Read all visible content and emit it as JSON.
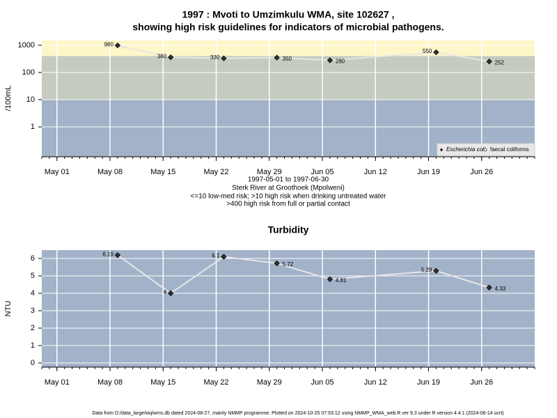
{
  "chart_data": [
    {
      "type": "line",
      "title": [
        "1997 : Mvoti to Umzimkulu WMA, site 102627 ,",
        "showing high risk guidelines for indicators of microbial pathogens."
      ],
      "ylabel": "/100mL",
      "caption": [
        "1997-05-01 to 1997-06-30",
        "Sterk River at Groothoek (Mpolweni)",
        "<=10 low-med risk; >10 high risk when drinking untreated water",
        ">400 high risk from full or partial contact"
      ],
      "x": [
        "1997-05-09",
        "1997-05-16",
        "1997-05-23",
        "1997-05-30",
        "1997-06-06",
        "1997-06-20",
        "1997-06-27"
      ],
      "series": [
        {
          "name": "Escherichia coli",
          "color": "#333333",
          "values": [
            980,
            360,
            330,
            350,
            280,
            550,
            252
          ]
        },
        {
          "name": "faecal coliforms",
          "color": "#ffffff",
          "values": [
            null,
            null,
            null,
            null,
            null,
            null,
            null
          ]
        }
      ],
      "xlim": [
        "1997-04-29",
        "1997-07-03"
      ],
      "xticks": [
        {
          "value": "1997-05-01",
          "label": "May 01"
        },
        {
          "value": "1997-05-08",
          "label": "May 08"
        },
        {
          "value": "1997-05-15",
          "label": "May 15"
        },
        {
          "value": "1997-05-22",
          "label": "May 22"
        },
        {
          "value": "1997-05-29",
          "label": "May 29"
        },
        {
          "value": "1997-06-05",
          "label": "Jun 05"
        },
        {
          "value": "1997-06-12",
          "label": "Jun 12"
        },
        {
          "value": "1997-06-19",
          "label": "Jun 19"
        },
        {
          "value": "1997-06-26",
          "label": "Jun 26"
        }
      ],
      "yscale": "log",
      "ylim": [
        0.08,
        1500
      ],
      "yticks": [
        1,
        10,
        100,
        1000
      ],
      "bands": [
        {
          "min": 400,
          "color": "#fdf6c8"
        },
        {
          "min": 10,
          "max": 400,
          "color": "#c5cbbf"
        },
        {
          "max": 10,
          "color": "#a2b2c9"
        }
      ],
      "grid": true,
      "legend": "bottom-right"
    },
    {
      "type": "line",
      "title": "Turbidity",
      "ylabel": "NTU",
      "x": [
        "1997-05-09",
        "1997-05-16",
        "1997-05-23",
        "1997-05-30",
        "1997-06-06",
        "1997-06-20",
        "1997-06-27"
      ],
      "series": [
        {
          "name": "Turbidity",
          "color": "#333333",
          "values": [
            6.19,
            4,
            6.1,
            5.72,
            4.81,
            5.29,
            4.33
          ]
        }
      ],
      "xlim": [
        "1997-04-29",
        "1997-07-03"
      ],
      "xticks": [
        {
          "value": "1997-05-01",
          "label": "May 01"
        },
        {
          "value": "1997-05-08",
          "label": "May 08"
        },
        {
          "value": "1997-05-15",
          "label": "May 15"
        },
        {
          "value": "1997-05-22",
          "label": "May 22"
        },
        {
          "value": "1997-05-29",
          "label": "May 29"
        },
        {
          "value": "1997-06-05",
          "label": "Jun 05"
        },
        {
          "value": "1997-06-12",
          "label": "Jun 12"
        },
        {
          "value": "1997-06-19",
          "label": "Jun 19"
        },
        {
          "value": "1997-06-26",
          "label": "Jun 26"
        }
      ],
      "yscale": "linear",
      "ylim": [
        -0.24,
        6.48
      ],
      "yticks": [
        0,
        1,
        2,
        3,
        4,
        5,
        6
      ],
      "background": "#a2b2c9",
      "grid": true
    }
  ],
  "footer": "Data from D:/data_large/wq/wms.db dated 2024-08-27, mainly NMMP programme. Plotted on 2024-10-25 07:53:12 using NMMP_WMA_web.R ver 9.3 under R version 4.4.1 (2024-06-14 ucrt)"
}
